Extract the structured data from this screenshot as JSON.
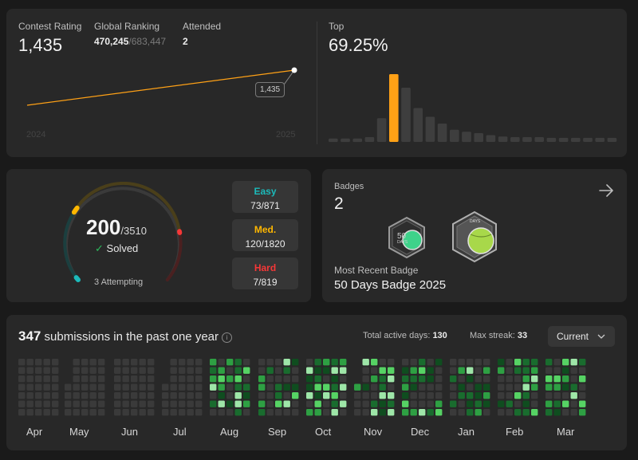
{
  "contest": {
    "rating_label": "Contest Rating",
    "rating_value": "1,435",
    "ranking_label": "Global Ranking",
    "ranking_value": "470,245",
    "ranking_total": "/683,447",
    "attended_label": "Attended",
    "attended_value": "2",
    "top_label": "Top",
    "top_value": "69.25%",
    "tooltip": "1,435",
    "year_start": "2024",
    "year_end": "2025"
  },
  "histogram": {
    "bars": [
      0.05,
      0.05,
      0.05,
      0.07,
      0.35,
      1.0,
      0.8,
      0.5,
      0.37,
      0.27,
      0.18,
      0.15,
      0.13,
      0.1,
      0.08,
      0.07,
      0.07,
      0.07,
      0.06,
      0.06,
      0.06,
      0.06,
      0.06,
      0.06
    ],
    "highlight_index": 5,
    "highlight_color": "#ffa116"
  },
  "problems": {
    "solved": "200",
    "total": "/3510",
    "solved_label": "Solved",
    "attempting": "3 Attempting",
    "easy_label": "Easy",
    "easy_value": "73/871",
    "medium_label": "Med.",
    "medium_value": "120/1820",
    "hard_label": "Hard",
    "hard_value": "7/819",
    "colors": {
      "easy": "#1cbaba",
      "medium": "#ffb700",
      "hard": "#f63737"
    }
  },
  "badges": {
    "label": "Badges",
    "count": "2",
    "recent_label": "Most Recent Badge",
    "recent_name": "50 Days Badge 2025",
    "badge1_text": "DAYS",
    "badge1_num": "50",
    "badge2_text": "DAYS",
    "arrow_icon": "arrow-right-icon"
  },
  "submissions": {
    "count": "347",
    "text": "submissions in the past one year",
    "active_label": "Total active days:",
    "active_value": "130",
    "streak_label": "Max streak:",
    "streak_value": "33",
    "dropdown_value": "Current",
    "months": [
      "Apr",
      "May",
      "Jun",
      "Jul",
      "Aug",
      "Sep",
      "Oct",
      "Nov",
      "Dec",
      "Jan",
      "Feb",
      "Mar"
    ]
  }
}
